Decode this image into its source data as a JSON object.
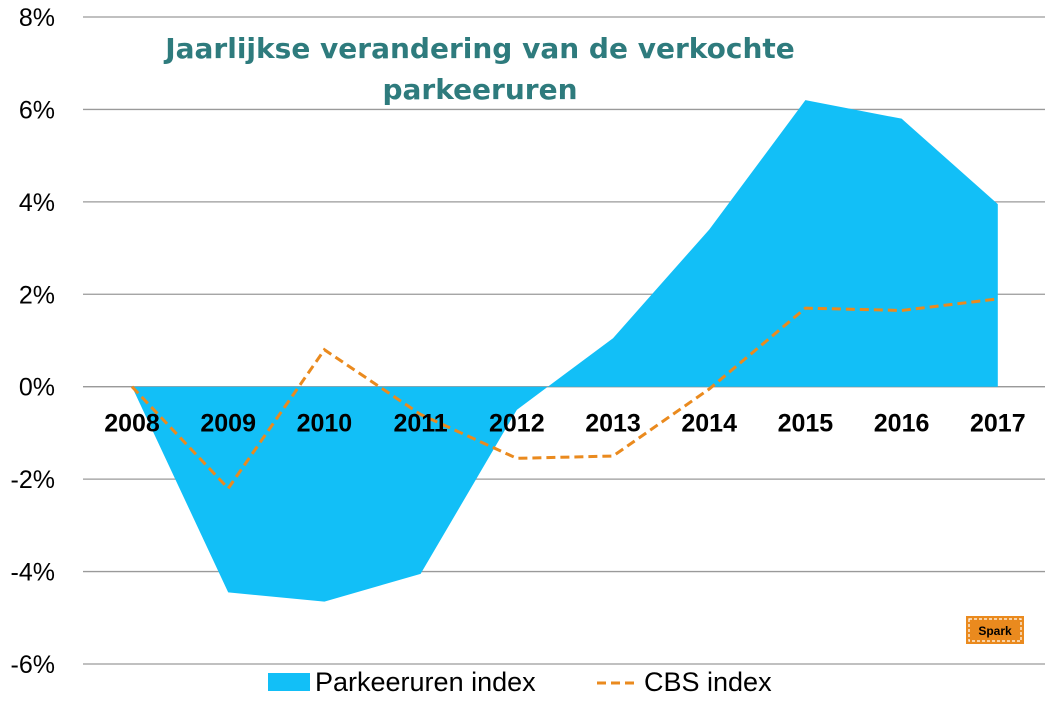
{
  "chart_data": {
    "type": "area",
    "title": "Jaarlijkse verandering van de verkochte parkeeruren",
    "title_lines": [
      "Jaarlijkse verandering van de verkochte",
      "parkeeruren"
    ],
    "categories": [
      "2008",
      "2009",
      "2010",
      "2011",
      "2012",
      "2013",
      "2014",
      "2015",
      "2016",
      "2017"
    ],
    "series": [
      {
        "name": "Parkeeruren index",
        "kind": "area",
        "color": "#12bff7",
        "values": [
          0.0,
          -4.45,
          -4.65,
          -4.05,
          -0.5,
          1.05,
          3.4,
          6.2,
          5.8,
          3.95
        ]
      },
      {
        "name": "CBS index",
        "kind": "line-dashed",
        "color": "#ea8a1e",
        "values": [
          0.0,
          -2.2,
          0.8,
          -0.6,
          -1.55,
          -1.5,
          -0.05,
          1.7,
          1.65,
          1.9
        ]
      }
    ],
    "ylim": [
      -6,
      8
    ],
    "yticks": [
      "-6%",
      "-4%",
      "-2%",
      "0%",
      "2%",
      "4%",
      "6%",
      "8%"
    ],
    "xlabel": "",
    "ylabel": "",
    "grid": true,
    "legend_position": "bottom"
  },
  "logo": {
    "text": "Spark",
    "color": "#ea8a1e"
  }
}
